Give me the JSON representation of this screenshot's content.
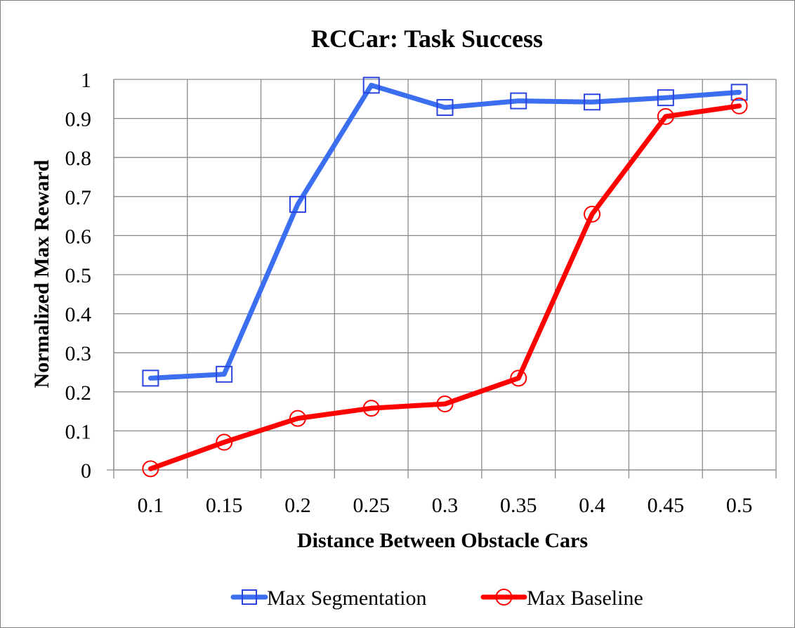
{
  "chart_data": {
    "type": "line",
    "title": "RCCar: Task Success",
    "xlabel": "Distance Between Obstacle Cars",
    "ylabel": "Normalized Max Reward",
    "categories": [
      "0.1",
      "0.15",
      "0.2",
      "0.25",
      "0.3",
      "0.35",
      "0.4",
      "0.45",
      "0.5"
    ],
    "yticks": [
      "0",
      "0.1",
      "0.2",
      "0.3",
      "0.4",
      "0.5",
      "0.6",
      "0.7",
      "0.8",
      "0.9",
      "1"
    ],
    "ylim": [
      0,
      1
    ],
    "grid": true,
    "legend_position": "bottom",
    "series": [
      {
        "name": "Max Segmentation",
        "color": "#3b6ff0",
        "marker": "square",
        "values": [
          0.235,
          0.245,
          0.68,
          0.985,
          0.928,
          0.945,
          0.942,
          0.953,
          0.967
        ]
      },
      {
        "name": "Max Baseline",
        "color": "#ff0000",
        "marker": "circle",
        "values": [
          0.003,
          0.071,
          0.132,
          0.158,
          0.169,
          0.235,
          0.655,
          0.905,
          0.932
        ]
      }
    ]
  }
}
